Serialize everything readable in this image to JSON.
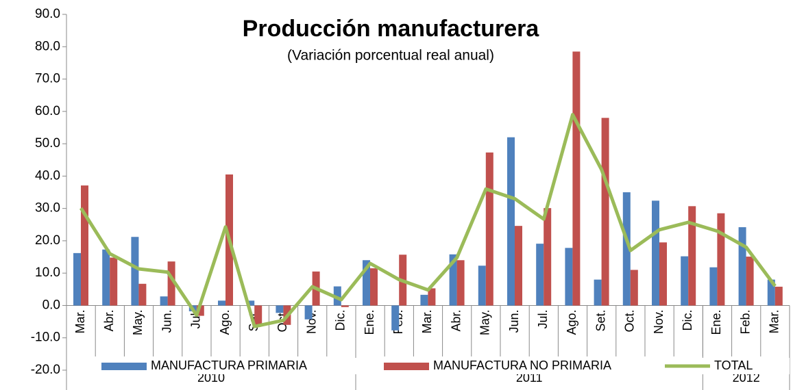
{
  "chart_data": {
    "type": "bar_line",
    "title": "Producción manufacturera",
    "subtitle": "(Variación porcentual real anual)",
    "categories": [
      "Mar.",
      "Abr.",
      "May.",
      "Jun.",
      "Jul.",
      "Ago.",
      "Set.",
      "Oct.",
      "Nov.",
      "Dic.",
      "Ene.",
      "Feb.",
      "Mar.",
      "Abr.",
      "May.",
      "Jun.",
      "Jul.",
      "Ago.",
      "Set.",
      "Oct.",
      "Nov.",
      "Dic.",
      "Ene.",
      "Feb.",
      "Mar."
    ],
    "groups": [
      {
        "label": "2010",
        "span": 10
      },
      {
        "label": "2011",
        "span": 12
      },
      {
        "label": "2012",
        "span": 3
      }
    ],
    "series": [
      {
        "name": "MANUFACTURA PRIMARIA",
        "type": "bar",
        "color": "#4f81bd",
        "values": [
          16.2,
          17.3,
          21.2,
          2.8,
          -1.8,
          1.5,
          1.5,
          -2.3,
          -4.3,
          5.9,
          14.0,
          -7.7,
          3.3,
          15.8,
          12.3,
          52.0,
          19.1,
          17.8,
          8.0,
          35.0,
          32.4,
          15.2,
          11.8,
          24.2,
          8.0
        ]
      },
      {
        "name": "MANUFACTURA NO PRIMARIA",
        "type": "bar",
        "color": "#c0504d",
        "values": [
          37.1,
          14.8,
          6.7,
          13.6,
          -3.2,
          40.5,
          -6.0,
          -6.0,
          10.5,
          -0.5,
          11.5,
          15.7,
          5.3,
          14.0,
          47.3,
          24.6,
          30.1,
          78.5,
          58.0,
          11.0,
          19.5,
          30.7,
          28.5,
          15.1,
          5.8
        ]
      },
      {
        "name": "TOTAL",
        "type": "line",
        "color": "#9bbb59",
        "values": [
          30.1,
          16.0,
          11.3,
          10.3,
          -3.0,
          24.3,
          -6.5,
          -4.6,
          5.8,
          1.8,
          13.0,
          8.0,
          4.8,
          14.8,
          36.0,
          33.0,
          26.7,
          59.0,
          42.0,
          17.0,
          23.4,
          25.7,
          23.0,
          18.0,
          6.0
        ]
      }
    ],
    "ylim": [
      -20,
      90
    ],
    "yticks": [
      {
        "value": -20,
        "label": "-20.0"
      },
      {
        "value": -10,
        "label": "-10.0"
      },
      {
        "value": 0,
        "label": "0.0"
      },
      {
        "value": 10,
        "label": "10.0"
      },
      {
        "value": 20,
        "label": "20.0"
      },
      {
        "value": 30,
        "label": "30.0"
      },
      {
        "value": 40,
        "label": "40.0"
      },
      {
        "value": 50,
        "label": "50.0"
      },
      {
        "value": 60,
        "label": "60.0"
      },
      {
        "value": 70,
        "label": "70.0"
      },
      {
        "value": 80,
        "label": "80.0"
      },
      {
        "value": 90,
        "label": "90.0"
      }
    ],
    "legend": "bottom",
    "grid": false
  }
}
